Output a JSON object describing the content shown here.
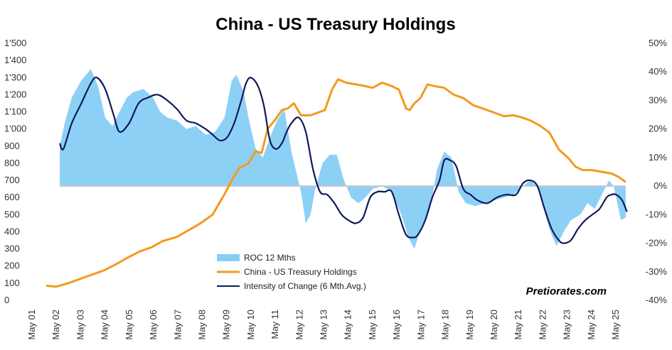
{
  "chart_data": {
    "type": "line",
    "title": "China - US Treasury Holdings",
    "left_axis": {
      "ticks": [
        "1'500",
        "1'400",
        "1'300",
        "1'200",
        "1'100",
        "1'000",
        "900",
        "800",
        "700",
        "600",
        "500",
        "400",
        "300",
        "200",
        "100",
        "0"
      ],
      "ylim": [
        0,
        1500
      ]
    },
    "right_axis": {
      "ticks": [
        "50%",
        "40%",
        "30%",
        "20%",
        "10%",
        "0%",
        "-10%",
        "-20%",
        "-30%",
        "-40%"
      ],
      "ylim": [
        -40,
        50
      ]
    },
    "x_ticks": [
      "May 01",
      "May 02",
      "May 03",
      "May 04",
      "May 05",
      "May 06",
      "May 07",
      "May 08",
      "May 09",
      "May 10",
      "May 11",
      "May 12",
      "May 13",
      "May 14",
      "May 15",
      "May 16",
      "May 17",
      "May 18",
      "May 19",
      "May 20",
      "May 21",
      "May 22",
      "May 23",
      "May 24",
      "May 25"
    ],
    "xlim": [
      2001.33,
      2025.9
    ],
    "legend": [
      {
        "label": "ROC 12 Mths",
        "color": "#87cef5",
        "kind": "area"
      },
      {
        "label": "China - US Treasury Holdings",
        "color": "#f39a1e",
        "kind": "line"
      },
      {
        "label": "Intensity of Change (6 Mth.Avg.)",
        "color": "#0f1a5c",
        "kind": "line"
      }
    ],
    "watermark": "Pretiorates.com",
    "series": [
      {
        "name": "China - US Treasury Holdings",
        "axis": "left",
        "x": [
          2001.33,
          2001.75,
          2002.25,
          2002.75,
          2003.25,
          2003.75,
          2004.25,
          2004.75,
          2005.25,
          2005.75,
          2006.2,
          2006.8,
          2007.3,
          2007.8,
          2008.3,
          2008.8,
          2009.1,
          2009.4,
          2009.8,
          2010.1,
          2010.35,
          2010.6,
          2010.9,
          2011.2,
          2011.45,
          2011.7,
          2012.0,
          2012.4,
          2012.8,
          2013.0,
          2013.3,
          2013.55,
          2013.9,
          2014.3,
          2014.7,
          2015.0,
          2015.4,
          2015.8,
          2016.1,
          2016.4,
          2016.55,
          2016.75,
          2017.0,
          2017.3,
          2017.6,
          2018.0,
          2018.4,
          2018.8,
          2019.2,
          2019.6,
          2020.0,
          2020.5,
          2020.9,
          2021.2,
          2021.6,
          2022.0,
          2022.4,
          2022.8,
          2023.2,
          2023.5,
          2023.8,
          2024.2,
          2024.6,
          2025.0,
          2025.3,
          2025.6
        ],
        "values": [
          85,
          80,
          100,
          125,
          150,
          175,
          210,
          250,
          285,
          310,
          345,
          370,
          410,
          450,
          500,
          620,
          700,
          770,
          800,
          870,
          860,
          1000,
          1050,
          1110,
          1120,
          1150,
          1080,
          1080,
          1100,
          1110,
          1230,
          1290,
          1270,
          1260,
          1250,
          1240,
          1270,
          1250,
          1230,
          1120,
          1110,
          1150,
          1180,
          1260,
          1250,
          1240,
          1200,
          1180,
          1140,
          1120,
          1100,
          1075,
          1080,
          1070,
          1050,
          1020,
          980,
          880,
          830,
          780,
          760,
          760,
          750,
          740,
          720,
          690
        ]
      },
      {
        "name": "ROC 12 Mths",
        "axis": "right",
        "x": [
          2001.9,
          2002.1,
          2002.4,
          2002.8,
          2003.2,
          2003.5,
          2003.8,
          2004.1,
          2004.4,
          2004.7,
          2005.0,
          2005.4,
          2005.8,
          2006.1,
          2006.4,
          2006.8,
          2007.2,
          2007.6,
          2008.0,
          2008.4,
          2008.8,
          2009.1,
          2009.3,
          2009.6,
          2009.8,
          2010.1,
          2010.4,
          2010.7,
          2011.0,
          2011.3,
          2011.6,
          2012.0,
          2012.2,
          2012.4,
          2012.6,
          2012.9,
          2013.2,
          2013.5,
          2013.8,
          2014.1,
          2014.4,
          2014.7,
          2015.0,
          2015.4,
          2015.8,
          2016.2,
          2016.5,
          2016.75,
          2017.0,
          2017.4,
          2017.7,
          2018.0,
          2018.3,
          2018.6,
          2018.9,
          2019.3,
          2019.7,
          2020.1,
          2020.5,
          2020.9,
          2021.3,
          2021.6,
          2021.9,
          2022.2,
          2022.4,
          2022.7,
          2023.0,
          2023.3,
          2023.7,
          2024.0,
          2024.3,
          2024.6,
          2024.9,
          2025.1,
          2025.4,
          2025.6
        ],
        "values": [
          14,
          22,
          31,
          37,
          41,
          35,
          24,
          21,
          26,
          31,
          33,
          34,
          31,
          26,
          24,
          23,
          20,
          21,
          18,
          19,
          24,
          37,
          39,
          33,
          24,
          13,
          10,
          17,
          23,
          27,
          12,
          -2,
          -13,
          -10,
          -1,
          8,
          11,
          11,
          2,
          -4,
          -6,
          -4,
          -1,
          0,
          -2,
          -10,
          -18,
          -22,
          -15,
          -8,
          6,
          12,
          10,
          -2,
          -6,
          -7,
          -6,
          -5,
          -4,
          -3,
          0,
          2,
          0,
          -9,
          -15,
          -21,
          -16,
          -12,
          -10,
          -6,
          -8,
          -3,
          2,
          0,
          -12,
          -11
        ]
      },
      {
        "name": "Intensity of Change (6 Mth.Avg.)",
        "axis": "right",
        "x": [
          2001.9,
          2002.05,
          2002.4,
          2002.8,
          2003.2,
          2003.45,
          2003.8,
          2004.15,
          2004.4,
          2004.8,
          2005.2,
          2005.6,
          2006.0,
          2006.4,
          2006.8,
          2007.2,
          2007.6,
          2008.0,
          2008.3,
          2008.6,
          2008.9,
          2009.2,
          2009.5,
          2009.7,
          2009.9,
          2010.2,
          2010.45,
          2010.7,
          2010.95,
          2011.2,
          2011.4,
          2011.6,
          2011.9,
          2012.2,
          2012.5,
          2012.8,
          2013.1,
          2013.4,
          2013.7,
          2014.0,
          2014.3,
          2014.6,
          2014.9,
          2015.2,
          2015.5,
          2015.8,
          2016.1,
          2016.4,
          2016.7,
          2016.9,
          2017.2,
          2017.5,
          2017.8,
          2018.0,
          2018.25,
          2018.5,
          2018.8,
          2019.1,
          2019.4,
          2019.8,
          2020.2,
          2020.6,
          2021.0,
          2021.3,
          2021.6,
          2021.9,
          2022.2,
          2022.5,
          2022.8,
          2023.0,
          2023.3,
          2023.6,
          2023.9,
          2024.2,
          2024.5,
          2024.8,
          2025.0,
          2025.2,
          2025.45,
          2025.65
        ],
        "values": [
          15,
          13,
          22,
          29,
          36,
          38,
          34,
          25,
          19,
          22,
          29,
          31,
          32,
          30,
          27,
          23,
          22,
          20,
          18,
          16,
          17,
          22,
          30,
          36,
          38,
          35,
          28,
          16,
          13,
          15,
          19,
          22,
          24,
          19,
          6,
          -2,
          -3,
          -6,
          -10,
          -12,
          -13,
          -11,
          -4,
          -2,
          -2,
          -2,
          -10,
          -17,
          -18,
          -17,
          -12,
          -4,
          2,
          9,
          9,
          7,
          -1,
          -3,
          -5,
          -6,
          -4,
          -3,
          -3,
          1,
          2,
          0,
          -8,
          -15,
          -19,
          -20,
          -19,
          -15,
          -12,
          -10,
          -8,
          -4,
          -3,
          -3,
          -5,
          -9
        ]
      }
    ]
  }
}
